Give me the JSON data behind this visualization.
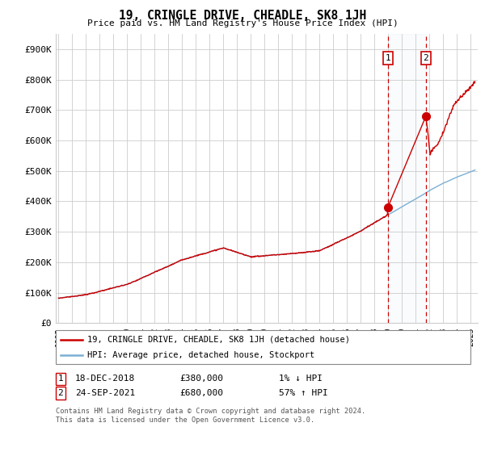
{
  "title": "19, CRINGLE DRIVE, CHEADLE, SK8 1JH",
  "subtitle": "Price paid vs. HM Land Registry's House Price Index (HPI)",
  "ylim": [
    0,
    950000
  ],
  "yticks": [
    0,
    100000,
    200000,
    300000,
    400000,
    500000,
    600000,
    700000,
    800000,
    900000
  ],
  "ytick_labels": [
    "£0",
    "£100K",
    "£200K",
    "£300K",
    "£400K",
    "£500K",
    "£600K",
    "£700K",
    "£800K",
    "£900K"
  ],
  "xlim_start": 1994.8,
  "xlim_end": 2025.5,
  "sale1_date": 2018.96,
  "sale1_price": 380000,
  "sale1_label": "1",
  "sale1_text": "18-DEC-2018",
  "sale1_amount": "£380,000",
  "sale1_hpi": "1% ↓ HPI",
  "sale2_date": 2021.73,
  "sale2_price": 680000,
  "sale2_label": "2",
  "sale2_text": "24-SEP-2021",
  "sale2_amount": "£680,000",
  "sale2_hpi": "57% ↑ HPI",
  "line_color_property": "#cc0000",
  "line_color_hpi": "#7bafd4",
  "shade_color": "#deeaf5",
  "vline_color": "#cc0000",
  "grid_color": "#cccccc",
  "bg_color": "#ffffff",
  "legend_label1": "19, CRINGLE DRIVE, CHEADLE, SK8 1JH (detached house)",
  "legend_label2": "HPI: Average price, detached house, Stockport",
  "footer": "Contains HM Land Registry data © Crown copyright and database right 2024.\nThis data is licensed under the Open Government Licence v3.0."
}
